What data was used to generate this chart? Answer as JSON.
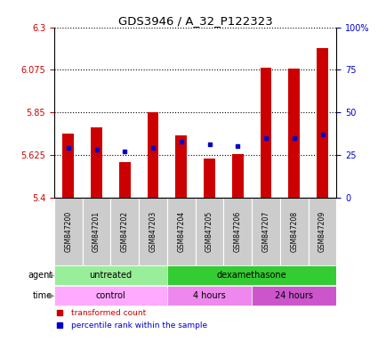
{
  "title": "GDS3946 / A_32_P122323",
  "samples": [
    "GSM847200",
    "GSM847201",
    "GSM847202",
    "GSM847203",
    "GSM847204",
    "GSM847205",
    "GSM847206",
    "GSM847207",
    "GSM847208",
    "GSM847209"
  ],
  "transformed_count": [
    5.74,
    5.77,
    5.585,
    5.85,
    5.73,
    5.605,
    5.63,
    6.085,
    6.08,
    6.19
  ],
  "percentile_rank": [
    29,
    28,
    27,
    29,
    33,
    31,
    30,
    35,
    35,
    37
  ],
  "y_min": 5.4,
  "y_max": 6.3,
  "y_ticks": [
    5.4,
    5.625,
    5.85,
    6.075,
    6.3
  ],
  "y_tick_labels": [
    "5.4",
    "5.625",
    "5.85",
    "6.075",
    "6.3"
  ],
  "right_y_ticks": [
    0,
    25,
    50,
    75,
    100
  ],
  "right_y_labels": [
    "0",
    "25",
    "50",
    "75",
    "100%"
  ],
  "bar_color": "#cc0000",
  "dot_color": "#0000cc",
  "agent_groups": [
    {
      "label": "untreated",
      "start": 0,
      "end": 3,
      "color": "#99ee99"
    },
    {
      "label": "dexamethasone",
      "start": 4,
      "end": 9,
      "color": "#33cc33"
    }
  ],
  "time_groups": [
    {
      "label": "control",
      "start": 0,
      "end": 3,
      "color": "#ffaaff"
    },
    {
      "label": "4 hours",
      "start": 4,
      "end": 6,
      "color": "#ee88ee"
    },
    {
      "label": "24 hours",
      "start": 7,
      "end": 9,
      "color": "#cc55cc"
    }
  ],
  "tick_label_color_left": "#cc0000",
  "tick_label_color_right": "#0000cc",
  "bar_width": 0.4,
  "xticklabel_bg": "#cccccc",
  "label_fontsize": 7,
  "tick_fontsize": 7
}
